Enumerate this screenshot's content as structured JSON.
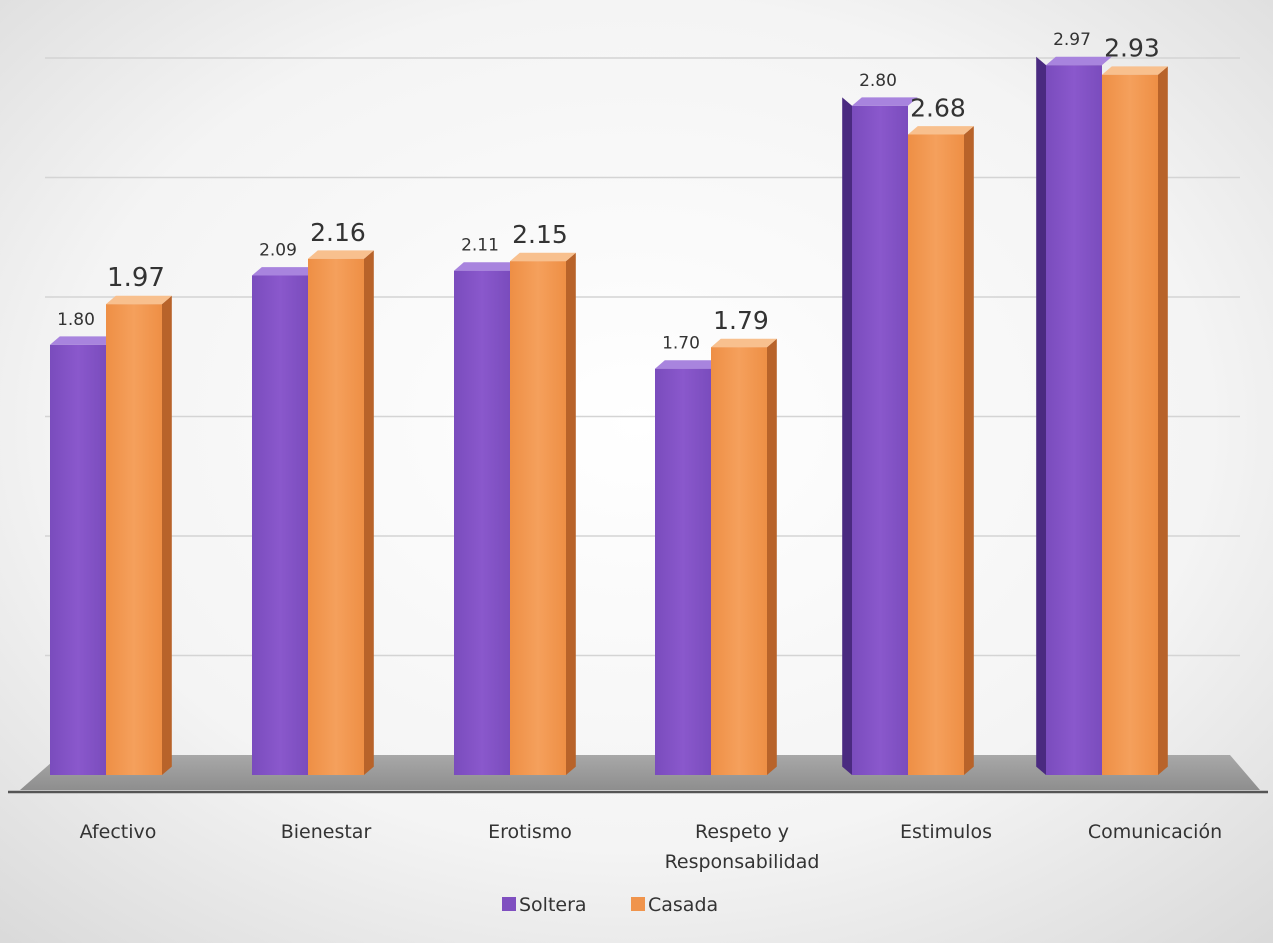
{
  "chart_data": {
    "type": "bar",
    "title": "",
    "xlabel": "",
    "ylabel": "",
    "ylim": [
      0,
      3.0
    ],
    "grid": true,
    "legend_position": "bottom",
    "categories": [
      "Afectivo",
      "Bienestar",
      "Erotismo",
      "Respeto y Responsabilidad",
      "Estimulos",
      "Comunicación"
    ],
    "category_lines": [
      [
        "Afectivo"
      ],
      [
        "Bienestar"
      ],
      [
        "Erotismo"
      ],
      [
        "Respeto y",
        "Responsabilidad"
      ],
      [
        "Estimulos"
      ],
      [
        "Comunicación"
      ]
    ],
    "series": [
      {
        "name": "Soltera",
        "color": "#7f4fc0",
        "values": [
          1.8,
          2.09,
          2.11,
          1.7,
          2.8,
          2.97
        ],
        "labels": [
          "1.80",
          "2.09",
          "2.11",
          "1.70",
          "2.80",
          "2.97"
        ]
      },
      {
        "name": "Casada",
        "color": "#f0944c",
        "values": [
          1.97,
          2.16,
          2.15,
          1.79,
          2.68,
          2.93
        ],
        "labels": [
          "1.97",
          "2.16",
          "2.15",
          "1.79",
          "2.68",
          "2.93"
        ]
      }
    ]
  }
}
